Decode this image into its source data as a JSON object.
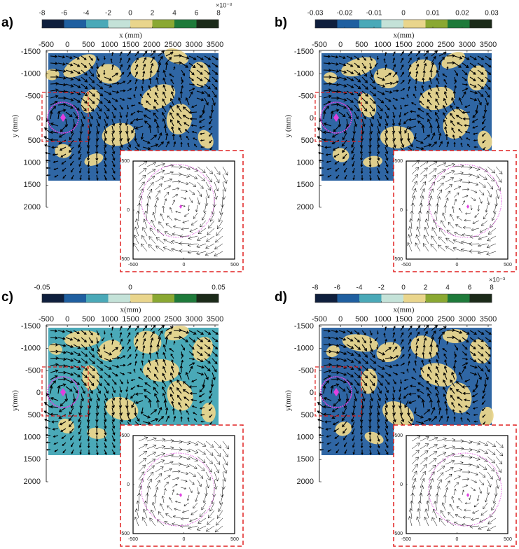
{
  "chart_data": [
    {
      "type": "vector-field",
      "label": "a)",
      "x_label": "x (mm)",
      "y_label": "y (mm)",
      "xlim": [
        -500,
        3500
      ],
      "xticks": [
        -500,
        0,
        500,
        1000,
        1500,
        2000,
        2500,
        3000,
        3500
      ],
      "ylim": [
        2000,
        -1500
      ],
      "yticks": [
        -1500,
        -1000,
        -500,
        0,
        500,
        1000,
        1500,
        2000
      ],
      "field_colors": [
        "#2f66a4",
        "#e9d58c"
      ],
      "colorbar": {
        "colors": [
          "#0f1f3d",
          "#1f5fa0",
          "#4aa9b8",
          "#c4e2d8",
          "#e9d58c",
          "#8aa832",
          "#1e7a3a",
          "#1b2a19"
        ],
        "lim": [
          -8,
          8
        ],
        "ticks": [
          -8,
          -6,
          -4,
          -2,
          0,
          2,
          4,
          6,
          8
        ],
        "multiplier": "×10⁻³"
      },
      "inset": {
        "xlim": [
          -500,
          500
        ],
        "xticks": [
          -500,
          0,
          500
        ],
        "ylim": [
          500,
          -500
        ],
        "yticks": [
          -500,
          0,
          500
        ]
      }
    },
    {
      "type": "vector-field",
      "label": "b)",
      "x_label": "x(mm)",
      "y_label": "y (mm)",
      "xlim": [
        -500,
        3500
      ],
      "xticks": [
        -500,
        0,
        500,
        1000,
        1500,
        2000,
        2500,
        3000,
        3500
      ],
      "ylim": [
        2000,
        -1500
      ],
      "yticks": [
        -1500,
        -1000,
        -500,
        0,
        500,
        1000,
        1500,
        2000
      ],
      "field_colors": [
        "#2f66a4",
        "#e9d58c"
      ],
      "colorbar": {
        "colors": [
          "#0f1f3d",
          "#1f5fa0",
          "#4aa9b8",
          "#c4e2d8",
          "#e9d58c",
          "#8aa832",
          "#1e7a3a",
          "#1b2a19"
        ],
        "lim": [
          -0.03,
          0.03
        ],
        "ticks": [
          -0.03,
          -0.02,
          -0.01,
          0,
          0.01,
          0.02,
          0.03
        ]
      },
      "inset": {
        "xlim": [
          -500,
          500
        ],
        "xticks": [
          -500,
          0,
          500
        ],
        "ylim": [
          500,
          -500
        ],
        "yticks": [
          -500,
          0,
          500
        ]
      }
    },
    {
      "type": "vector-field",
      "label": "c)",
      "x_label": "x(mm)",
      "y_label": "y(mm)",
      "xlim": [
        -500,
        3500
      ],
      "xticks": [
        -500,
        0,
        500,
        1000,
        1500,
        2000,
        2500,
        3000,
        3500
      ],
      "ylim": [
        2000,
        -1500
      ],
      "yticks": [
        -1500,
        -1000,
        -500,
        0,
        500,
        1000,
        1500,
        2000
      ],
      "field_colors": [
        "#4aa9b8",
        "#e9d58c"
      ],
      "colorbar": {
        "colors": [
          "#0f1f3d",
          "#1f5fa0",
          "#4aa9b8",
          "#c4e2d8",
          "#e9d58c",
          "#8aa832",
          "#1e7a3a",
          "#1b2a19"
        ],
        "lim": [
          -0.05,
          0.05
        ],
        "ticks": [
          -0.05,
          0,
          0.05
        ]
      },
      "inset": {
        "xlim": [
          -500,
          500
        ],
        "xticks": [
          -500,
          0,
          500
        ],
        "ylim": [
          500,
          -500
        ],
        "yticks": [
          -500,
          0,
          500
        ]
      }
    },
    {
      "type": "vector-field",
      "label": "d)",
      "x_label": "x(mm)",
      "y_label": "y(mm)",
      "xlim": [
        -500,
        3500
      ],
      "xticks": [
        -500,
        0,
        500,
        1000,
        1500,
        2000,
        2500,
        3000,
        3500
      ],
      "ylim": [
        2000,
        -1500
      ],
      "yticks": [
        -1500,
        -1000,
        -500,
        0,
        500,
        1000,
        1500,
        2000
      ],
      "field_colors": [
        "#2f66a4",
        "#e9d58c"
      ],
      "colorbar": {
        "colors": [
          "#0f1f3d",
          "#1f5fa0",
          "#4aa9b8",
          "#c4e2d8",
          "#e9d58c",
          "#8aa832",
          "#1e7a3a",
          "#1b2a19"
        ],
        "lim": [
          -8,
          8
        ],
        "ticks": [
          -8,
          -6,
          -4,
          -2,
          0,
          2,
          4,
          6,
          8
        ],
        "multiplier": "×10⁻³"
      },
      "inset": {
        "xlim": [
          -500,
          500
        ],
        "xticks": [
          -500,
          0,
          500
        ],
        "ylim": [
          500,
          -500
        ],
        "yticks": [
          -500,
          0,
          500
        ]
      }
    }
  ]
}
